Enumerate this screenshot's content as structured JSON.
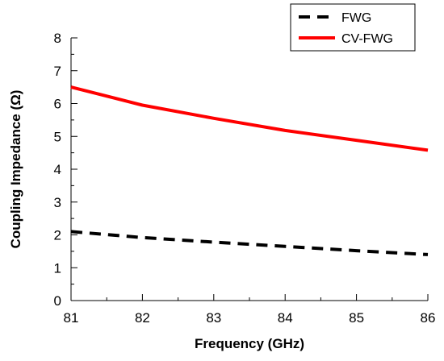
{
  "chart_data": {
    "type": "line",
    "xlabel": "Frequency (GHz)",
    "ylabel": "Coupling Impedance (Ω)",
    "xlim": [
      81,
      86
    ],
    "ylim": [
      0,
      8
    ],
    "x_ticks": [
      "81",
      "82",
      "83",
      "84",
      "85",
      "86"
    ],
    "y_ticks": [
      "0",
      "1",
      "2",
      "3",
      "4",
      "5",
      "6",
      "7",
      "8"
    ],
    "grid": false,
    "legend_position": "top-right",
    "series": [
      {
        "name": "FWG",
        "style": "dashed",
        "color": "#000000",
        "x": [
          81,
          82,
          83,
          84,
          85,
          86
        ],
        "y": [
          2.1,
          1.92,
          1.78,
          1.65,
          1.52,
          1.4
        ]
      },
      {
        "name": "CV-FWG",
        "style": "solid",
        "color": "#ff0000",
        "x": [
          81,
          82,
          83,
          84,
          85,
          86
        ],
        "y": [
          6.5,
          5.95,
          5.55,
          5.18,
          4.88,
          4.58
        ]
      }
    ]
  }
}
